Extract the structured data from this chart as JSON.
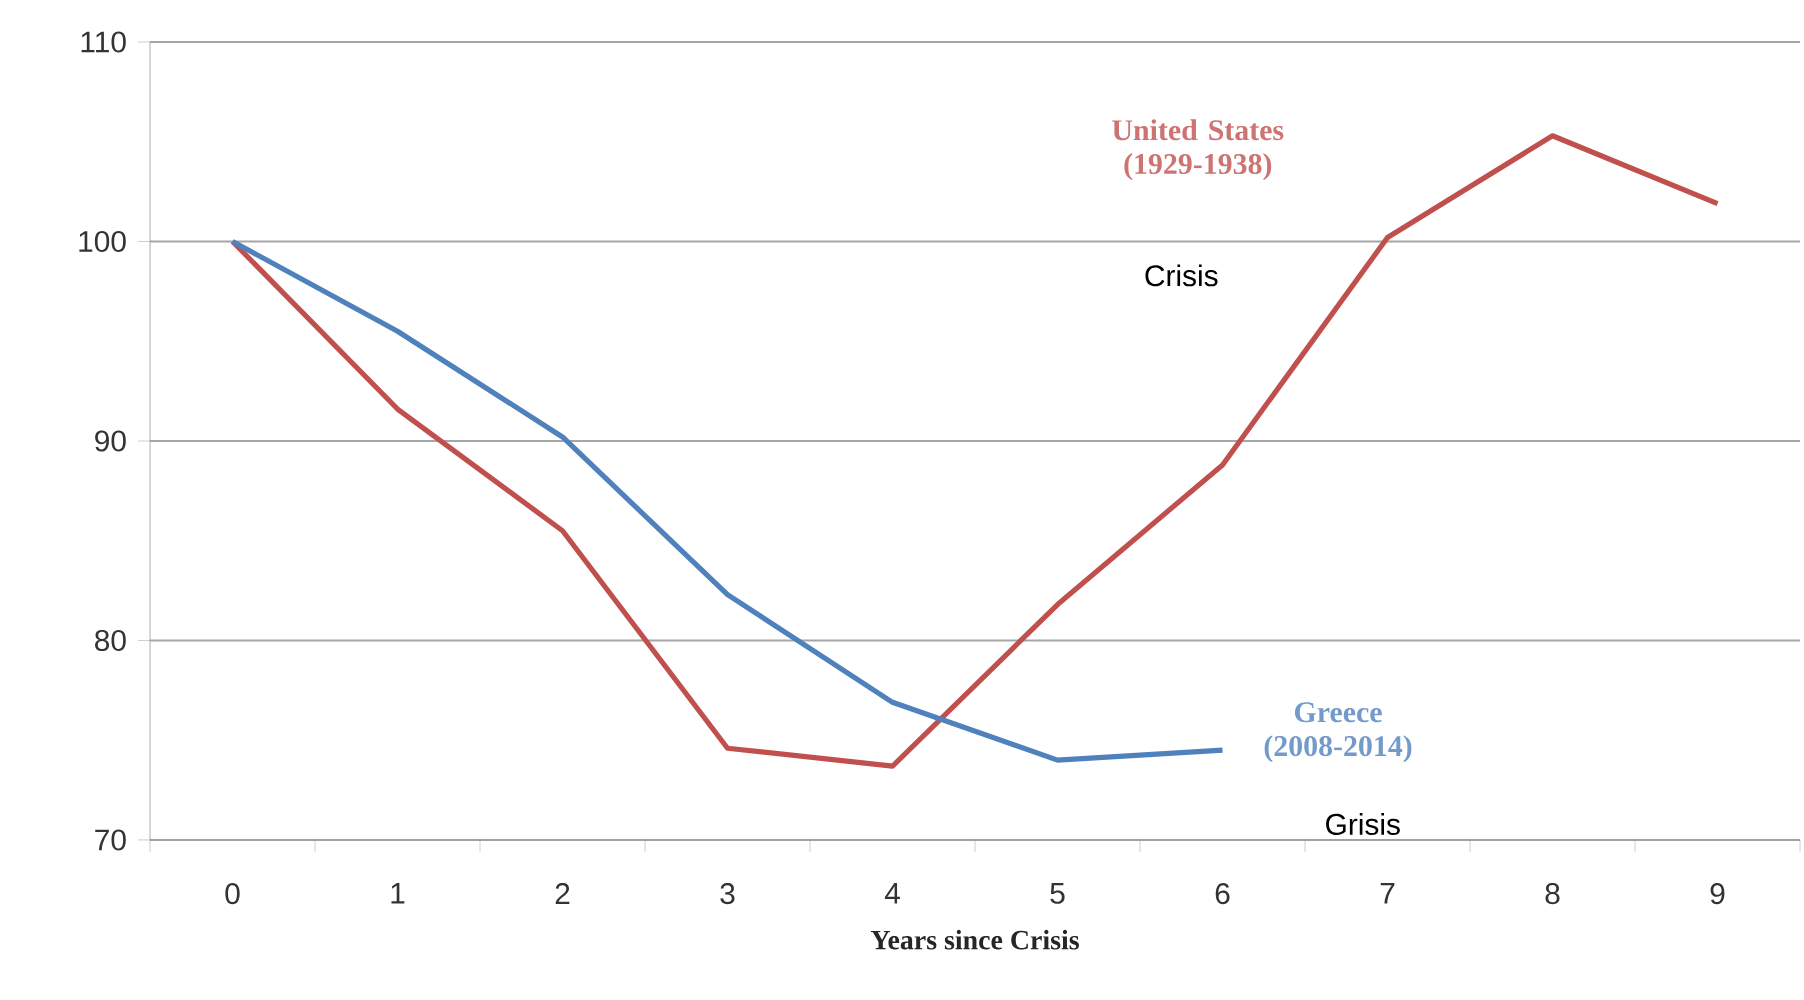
{
  "chart_data": {
    "type": "line",
    "xlabel": "Years since Crisis",
    "categories": [
      "0",
      "1",
      "2",
      "3",
      "4",
      "5",
      "6",
      "7",
      "8",
      "9"
    ],
    "series": [
      {
        "name": "United States (1929-1938)",
        "color": "#c0504d",
        "values": [
          100,
          91.6,
          85.5,
          74.6,
          73.7,
          81.8,
          88.8,
          100.2,
          105.3,
          101.9
        ]
      },
      {
        "name": "Greece (2008-2014)",
        "color": "#4f81bd",
        "values": [
          100,
          95.5,
          90.2,
          82.3,
          76.9,
          74.0,
          74.5,
          null,
          null,
          null
        ]
      }
    ],
    "annotations": [
      "Crisis",
      "Grisis"
    ],
    "ylim": [
      70,
      110
    ],
    "yticks": [
      70,
      80,
      90,
      100,
      110
    ],
    "grid": "y",
    "marker": "none",
    "line_style": "solid"
  }
}
